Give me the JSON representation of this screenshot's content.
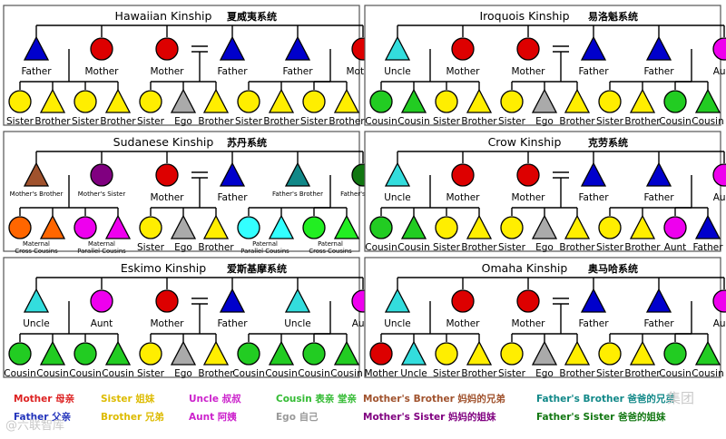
{
  "panels": [
    {
      "title": "Hawaiian Kinship",
      "title_cn": "夏威夷系统",
      "parents": [
        {
          "shape": "tri",
          "color": "#0000cc",
          "label": "Father"
        },
        {
          "shape": "circ",
          "color": "#dd0000",
          "label": "Mother"
        },
        {
          "shape": "circ",
          "color": "#dd0000",
          "label": "Mother"
        },
        {
          "shape": "tri",
          "color": "#0000cc",
          "label": "Father"
        },
        {
          "shape": "tri",
          "color": "#0000cc",
          "label": "Father"
        },
        {
          "shape": "circ",
          "color": "#dd0000",
          "label": "Mother"
        }
      ],
      "children": [
        {
          "shape": "circ",
          "color": "#ffee00",
          "label": "Sister"
        },
        {
          "shape": "tri",
          "color": "#ffee00",
          "label": "Brother"
        },
        {
          "shape": "circ",
          "color": "#ffee00",
          "label": "Sister"
        },
        {
          "shape": "tri",
          "color": "#ffee00",
          "label": "Brother"
        },
        {
          "shape": "circ",
          "color": "#ffee00",
          "label": "Sister"
        },
        {
          "shape": "tri",
          "color": "#aaaaaa",
          "label": "Ego"
        },
        {
          "shape": "tri",
          "color": "#ffee00",
          "label": "Brother"
        },
        {
          "shape": "circ",
          "color": "#ffee00",
          "label": "Sister"
        },
        {
          "shape": "tri",
          "color": "#ffee00",
          "label": "Brother"
        },
        {
          "shape": "circ",
          "color": "#ffee00",
          "label": "Sister"
        },
        {
          "shape": "tri",
          "color": "#ffee00",
          "label": "Brother"
        }
      ]
    },
    {
      "title": "Iroquois Kinship",
      "title_cn": "易洛魁系统",
      "parents": [
        {
          "shape": "tri",
          "color": "#33dddd",
          "label": "Uncle"
        },
        {
          "shape": "circ",
          "color": "#dd0000",
          "label": "Mother"
        },
        {
          "shape": "circ",
          "color": "#dd0000",
          "label": "Mother"
        },
        {
          "shape": "tri",
          "color": "#0000cc",
          "label": "Father"
        },
        {
          "shape": "tri",
          "color": "#0000cc",
          "label": "Father"
        },
        {
          "shape": "circ",
          "color": "#ee00ee",
          "label": "Aunt"
        }
      ],
      "children": [
        {
          "shape": "circ",
          "color": "#22cc22",
          "label": "Cousin"
        },
        {
          "shape": "tri",
          "color": "#22cc22",
          "label": "Cousin"
        },
        {
          "shape": "circ",
          "color": "#ffee00",
          "label": "Sister"
        },
        {
          "shape": "tri",
          "color": "#ffee00",
          "label": "Brother"
        },
        {
          "shape": "circ",
          "color": "#ffee00",
          "label": "Sister"
        },
        {
          "shape": "tri",
          "color": "#aaaaaa",
          "label": "Ego"
        },
        {
          "shape": "tri",
          "color": "#ffee00",
          "label": "Brother"
        },
        {
          "shape": "circ",
          "color": "#ffee00",
          "label": "Sister"
        },
        {
          "shape": "tri",
          "color": "#ffee00",
          "label": "Brother"
        },
        {
          "shape": "circ",
          "color": "#22cc22",
          "label": "Cousin"
        },
        {
          "shape": "tri",
          "color": "#22cc22",
          "label": "Cousin"
        }
      ]
    },
    {
      "title": "Sudanese Kinship",
      "title_cn": "苏丹系统",
      "parents": [
        {
          "shape": "tri",
          "color": "#a0522d",
          "label": "Mother's Brother",
          "small": true
        },
        {
          "shape": "circ",
          "color": "#800080",
          "label": "Mother's Sister",
          "small": true
        },
        {
          "shape": "circ",
          "color": "#dd0000",
          "label": "Mother"
        },
        {
          "shape": "tri",
          "color": "#0000cc",
          "label": "Father"
        },
        {
          "shape": "tri",
          "color": "#118888",
          "label": "Father's Brother",
          "small": true
        },
        {
          "shape": "circ",
          "color": "#117711",
          "label": "Father's Sister",
          "small": true
        }
      ],
      "children": [
        {
          "shape": "circ",
          "color": "#ff6600"
        },
        {
          "shape": "tri",
          "color": "#ff6600"
        },
        {
          "shape": "circ",
          "color": "#ee00ee"
        },
        {
          "shape": "tri",
          "color": "#ee00ee"
        },
        {
          "shape": "circ",
          "color": "#ffee00",
          "label": "Sister"
        },
        {
          "shape": "tri",
          "color": "#aaaaaa",
          "label": "Ego"
        },
        {
          "shape": "tri",
          "color": "#ffee00",
          "label": "Brother"
        },
        {
          "shape": "circ",
          "color": "#33ffff"
        },
        {
          "shape": "tri",
          "color": "#33ffff"
        },
        {
          "shape": "circ",
          "color": "#22ee22"
        },
        {
          "shape": "tri",
          "color": "#22ee22"
        }
      ],
      "group_labels": [
        {
          "between": [
            0,
            1
          ],
          "line1": "Maternal",
          "line2": "Cross Cousins"
        },
        {
          "between": [
            2,
            3
          ],
          "line1": "Maternal",
          "line2": "Parallel Cousins"
        },
        {
          "between": [
            7,
            8
          ],
          "line1": "Paternal",
          "line2": "Parallel Cousins"
        },
        {
          "between": [
            9,
            10
          ],
          "line1": "Paternal",
          "line2": "Cross Cousins"
        }
      ]
    },
    {
      "title": "Crow Kinship",
      "title_cn": "克劳系统",
      "parents": [
        {
          "shape": "tri",
          "color": "#33dddd",
          "label": "Uncle"
        },
        {
          "shape": "circ",
          "color": "#dd0000",
          "label": "Mother"
        },
        {
          "shape": "circ",
          "color": "#dd0000",
          "label": "Mother"
        },
        {
          "shape": "tri",
          "color": "#0000cc",
          "label": "Father"
        },
        {
          "shape": "tri",
          "color": "#0000cc",
          "label": "Father"
        },
        {
          "shape": "circ",
          "color": "#ee00ee",
          "label": "Aunt"
        }
      ],
      "children": [
        {
          "shape": "circ",
          "color": "#22cc22",
          "label": "Cousin"
        },
        {
          "shape": "tri",
          "color": "#22cc22",
          "label": "Cousin"
        },
        {
          "shape": "circ",
          "color": "#ffee00",
          "label": "Sister"
        },
        {
          "shape": "tri",
          "color": "#ffee00",
          "label": "Brother"
        },
        {
          "shape": "circ",
          "color": "#ffee00",
          "label": "Sister"
        },
        {
          "shape": "tri",
          "color": "#aaaaaa",
          "label": "Ego"
        },
        {
          "shape": "tri",
          "color": "#ffee00",
          "label": "Brother"
        },
        {
          "shape": "circ",
          "color": "#ffee00",
          "label": "Sister"
        },
        {
          "shape": "tri",
          "color": "#ffee00",
          "label": "Brother"
        },
        {
          "shape": "circ",
          "color": "#ee00ee",
          "label": "Aunt"
        },
        {
          "shape": "tri",
          "color": "#0000cc",
          "label": "Father"
        }
      ]
    },
    {
      "title": "Eskimo Kinship",
      "title_cn": "爱斯基摩系统",
      "parents": [
        {
          "shape": "tri",
          "color": "#33dddd",
          "label": "Uncle"
        },
        {
          "shape": "circ",
          "color": "#ee00ee",
          "label": "Aunt"
        },
        {
          "shape": "circ",
          "color": "#dd0000",
          "label": "Mother"
        },
        {
          "shape": "tri",
          "color": "#0000cc",
          "label": "Father"
        },
        {
          "shape": "tri",
          "color": "#33dddd",
          "label": "Uncle"
        },
        {
          "shape": "circ",
          "color": "#ee00ee",
          "label": "Aunt"
        }
      ],
      "children": [
        {
          "shape": "circ",
          "color": "#22cc22",
          "label": "Cousin"
        },
        {
          "shape": "tri",
          "color": "#22cc22",
          "label": "Cousin"
        },
        {
          "shape": "circ",
          "color": "#22cc22",
          "label": "Cousin"
        },
        {
          "shape": "tri",
          "color": "#22cc22",
          "label": "Cousin"
        },
        {
          "shape": "circ",
          "color": "#ffee00",
          "label": "Sister"
        },
        {
          "shape": "tri",
          "color": "#aaaaaa",
          "label": "Ego"
        },
        {
          "shape": "tri",
          "color": "#ffee00",
          "label": "Brother"
        },
        {
          "shape": "circ",
          "color": "#22cc22",
          "label": "Cousin"
        },
        {
          "shape": "tri",
          "color": "#22cc22",
          "label": "Cousin"
        },
        {
          "shape": "circ",
          "color": "#22cc22",
          "label": "Cousin"
        },
        {
          "shape": "tri",
          "color": "#22cc22",
          "label": "Cousin"
        }
      ]
    },
    {
      "title": "Omaha Kinship",
      "title_cn": "奥马哈系统",
      "parents": [
        {
          "shape": "tri",
          "color": "#33dddd",
          "label": "Uncle"
        },
        {
          "shape": "circ",
          "color": "#dd0000",
          "label": "Mother"
        },
        {
          "shape": "circ",
          "color": "#dd0000",
          "label": "Mother"
        },
        {
          "shape": "tri",
          "color": "#0000cc",
          "label": "Father"
        },
        {
          "shape": "tri",
          "color": "#0000cc",
          "label": "Father"
        },
        {
          "shape": "circ",
          "color": "#ee00ee",
          "label": "Aunt"
        }
      ],
      "children": [
        {
          "shape": "circ",
          "color": "#dd0000",
          "label": "Mother"
        },
        {
          "shape": "tri",
          "color": "#33dddd",
          "label": "Uncle"
        },
        {
          "shape": "circ",
          "color": "#ffee00",
          "label": "Sister"
        },
        {
          "shape": "tri",
          "color": "#ffee00",
          "label": "Brother"
        },
        {
          "shape": "circ",
          "color": "#ffee00",
          "label": "Sister"
        },
        {
          "shape": "tri",
          "color": "#aaaaaa",
          "label": "Ego"
        },
        {
          "shape": "tri",
          "color": "#ffee00",
          "label": "Brother"
        },
        {
          "shape": "circ",
          "color": "#ffee00",
          "label": "Sister"
        },
        {
          "shape": "tri",
          "color": "#ffee00",
          "label": "Brother"
        },
        {
          "shape": "circ",
          "color": "#22cc22",
          "label": "Cousin"
        },
        {
          "shape": "tri",
          "color": "#22cc22",
          "label": "Cousin"
        }
      ]
    }
  ],
  "legend": [
    {
      "en": "Mother",
      "cn": "母亲",
      "color": "#dd2222"
    },
    {
      "en": "Father",
      "cn": "父亲",
      "color": "#2233bb"
    },
    {
      "en": "Sister",
      "cn": "姐妹",
      "color": "#ddbb00"
    },
    {
      "en": "Brother",
      "cn": "兄弟",
      "color": "#ddbb00"
    },
    {
      "en": "Uncle",
      "cn": "叔叔",
      "color": "#cc22cc"
    },
    {
      "en": "Aunt",
      "cn": "阿姨",
      "color": "#cc22cc"
    },
    {
      "en": "Cousin",
      "cn": "表亲 堂亲",
      "color": "#33bb33"
    },
    {
      "en": "Ego",
      "cn": "自己",
      "color": "#999999"
    },
    {
      "en": "Mother's Brother",
      "cn": "妈妈的兄弟",
      "color": "#a0522d"
    },
    {
      "en": "Mother's Sister",
      "cn": "妈妈的姐妹",
      "color": "#800080"
    },
    {
      "en": "Father's Brother",
      "cn": "爸爸的兄弟",
      "color": "#118888"
    },
    {
      "en": "Father's Sister",
      "cn": "爸爸的姐妹",
      "color": "#117711"
    }
  ],
  "watermarks": {
    "left": "@六联智库",
    "right": "集团"
  }
}
